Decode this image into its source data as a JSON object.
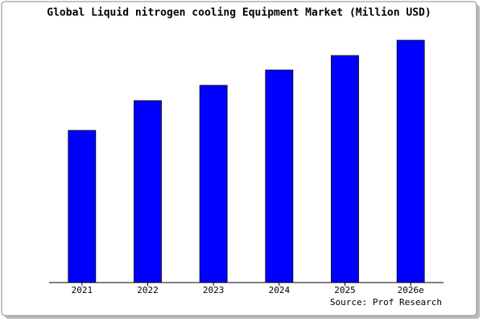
{
  "chart_data": {
    "type": "bar",
    "title": "Global Liquid nitrogen cooling Equipment Market (Million USD)",
    "source": "Source: Prof Research",
    "categories": [
      "2021",
      "2022",
      "2023",
      "2024",
      "2025",
      "2026e"
    ],
    "values": [
      189,
      226,
      245,
      264,
      282,
      301
    ],
    "color": "#0000ff",
    "ylim": [
      0,
      303
    ]
  }
}
